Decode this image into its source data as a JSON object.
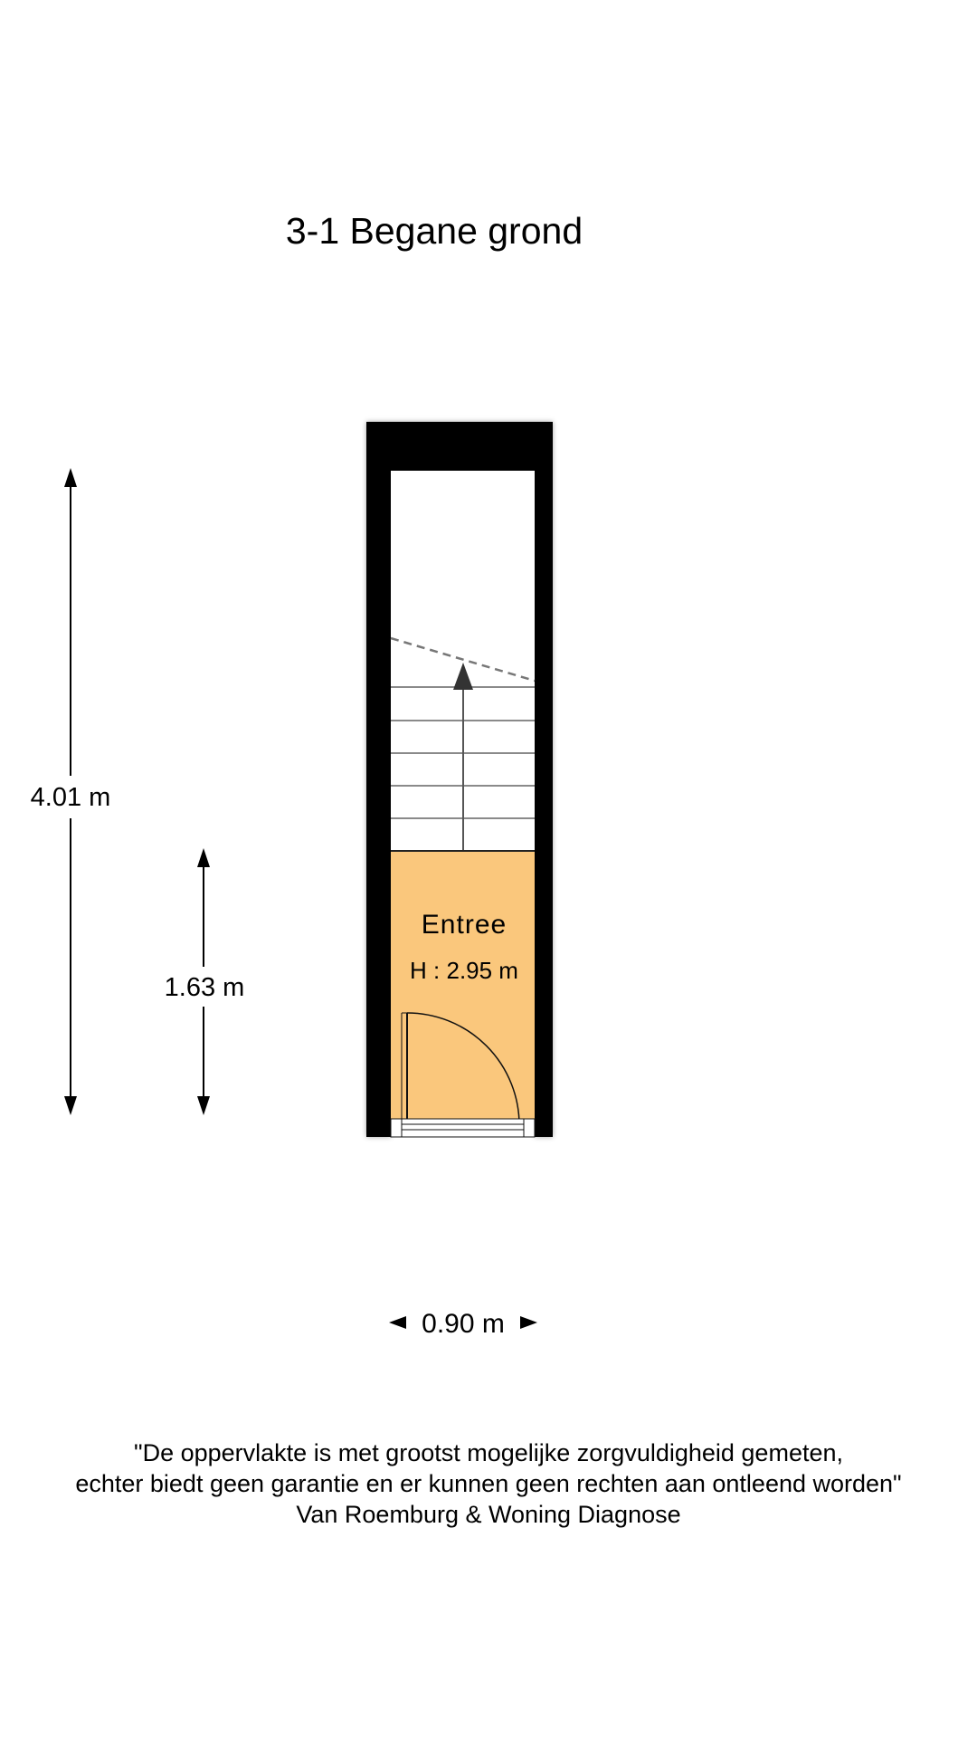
{
  "floor_title": "3-1 Begane grond",
  "room": {
    "name": "Entree",
    "height_label": "H : 2.95 m"
  },
  "dimensions": {
    "total_length": "4.01 m",
    "entrance_length": "1.63 m",
    "width": "0.90 m"
  },
  "disclaimer": {
    "line1": "\"De oppervlakte is met grootst mogelijke zorgvuldigheid gemeten,",
    "line2": "echter biedt geen garantie en er kunnen geen rechten aan ontleend worden\"",
    "line3": "Van Roemburg & Woning Diagnose"
  },
  "colors": {
    "wall": "#000000",
    "entree_floor": "#fac77c",
    "stair_lines": "#8a8a8a"
  }
}
